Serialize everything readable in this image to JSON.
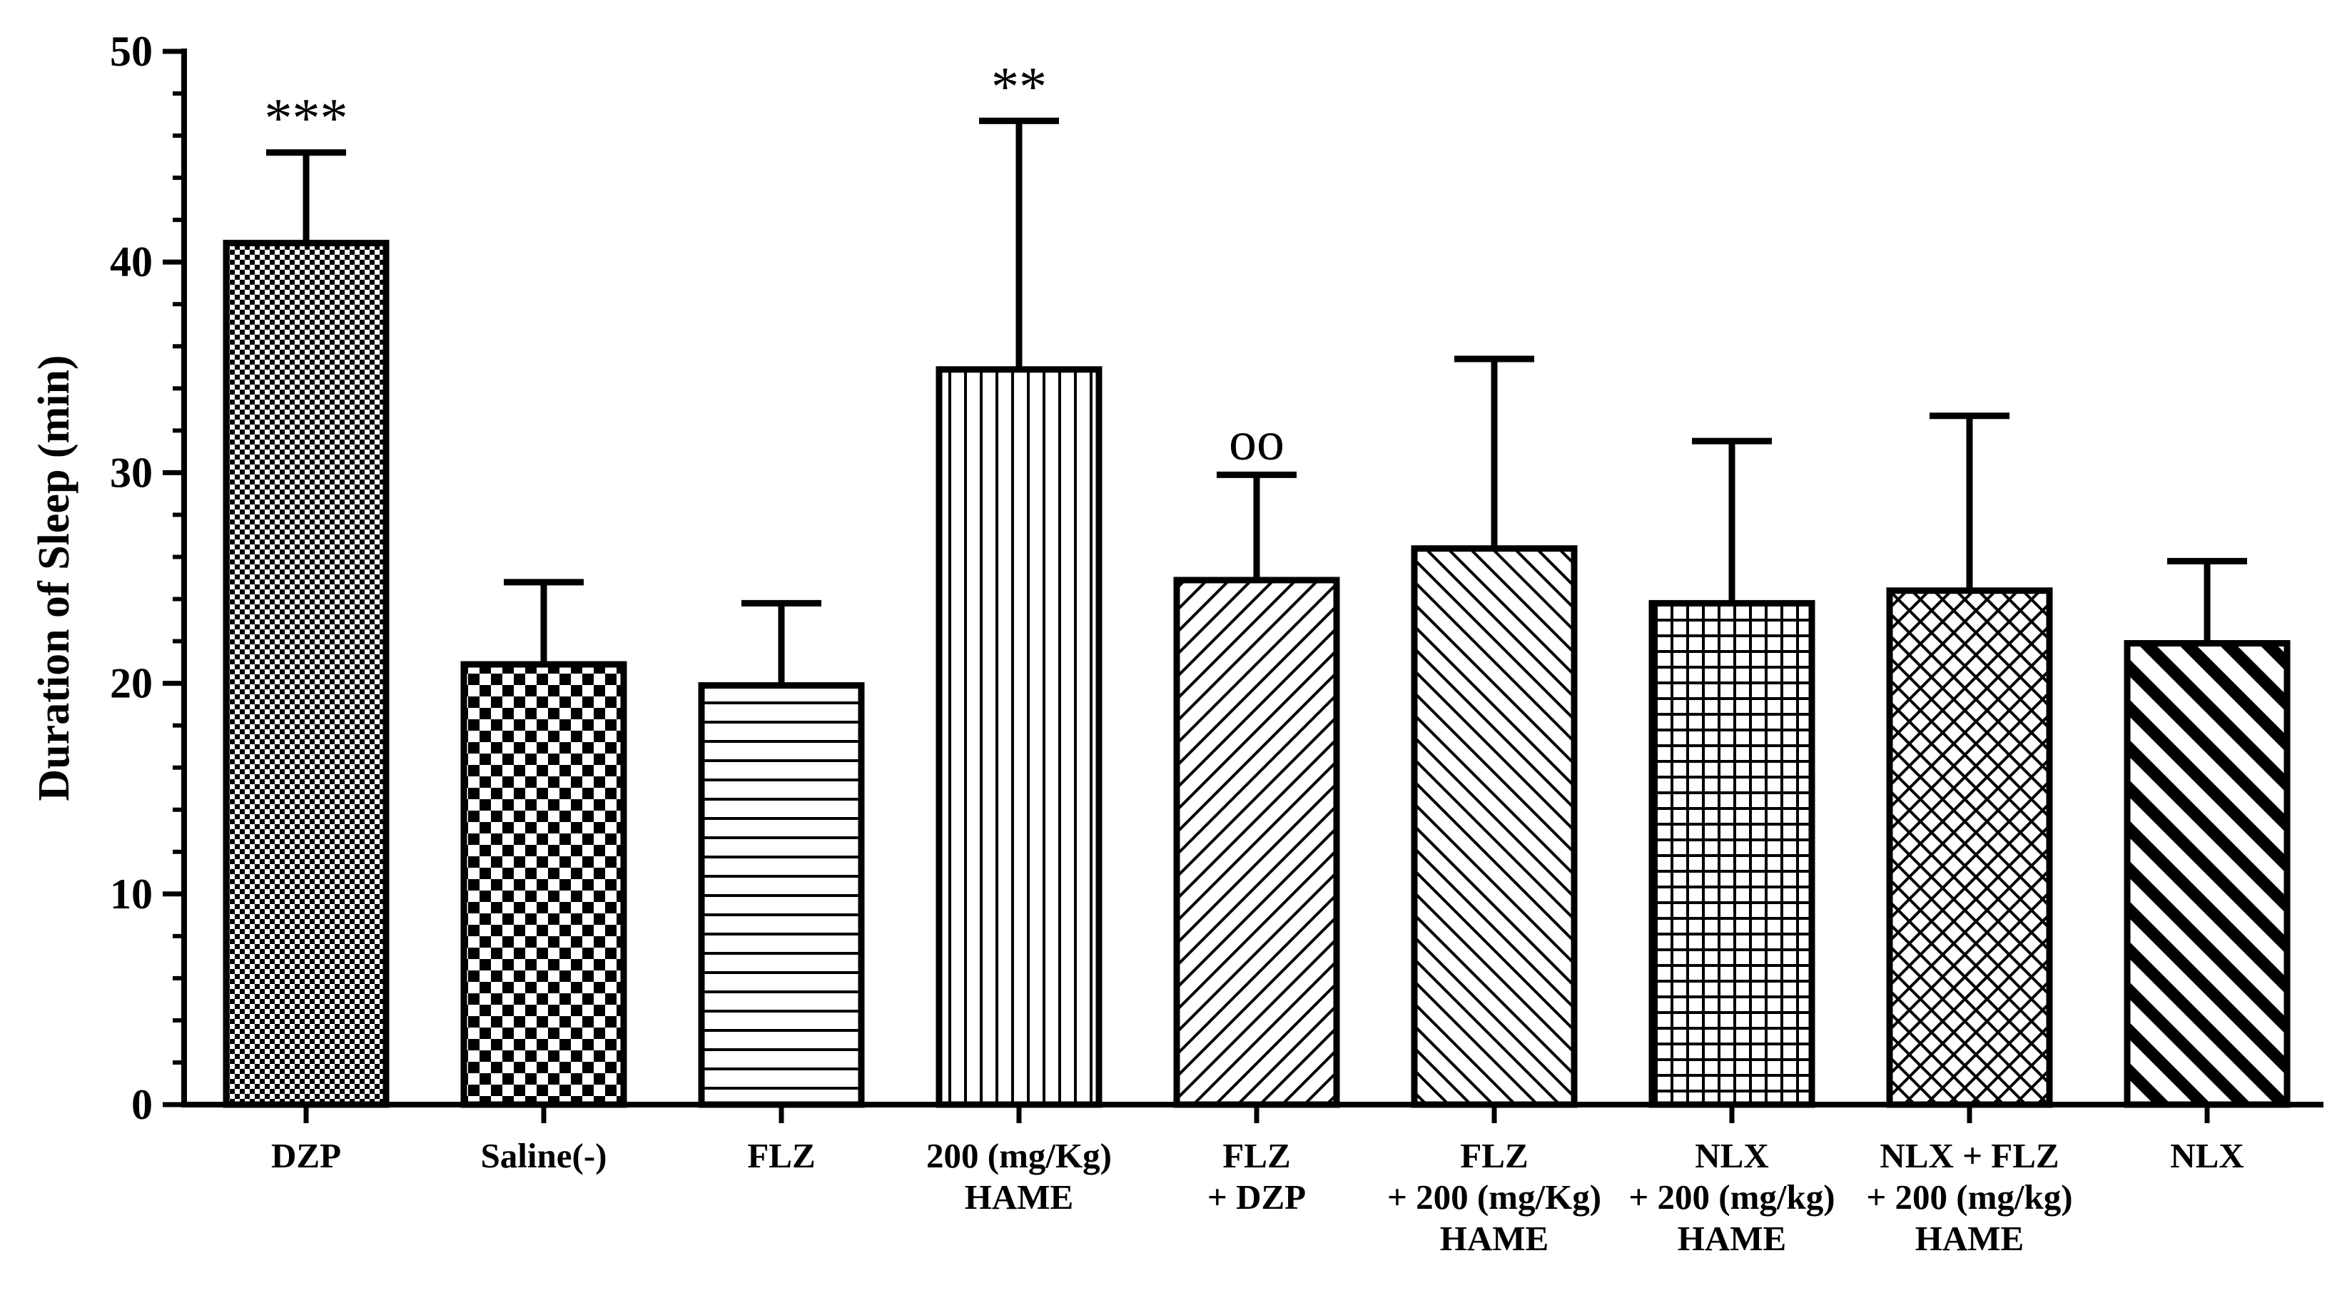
{
  "chart_data": {
    "type": "bar",
    "title": "",
    "xlabel": "",
    "ylabel": "Duration of Sleep (min)",
    "ylim": [
      0,
      50
    ],
    "yticks": [
      0,
      10,
      20,
      30,
      40,
      50
    ],
    "grid": false,
    "legend": "none",
    "categories": [
      [
        "DZP"
      ],
      [
        "Saline(-)"
      ],
      [
        "FLZ"
      ],
      [
        "200 (mg/Kg)",
        "HAME"
      ],
      [
        "FLZ",
        "+ DZP"
      ],
      [
        "FLZ",
        "+ 200 (mg/Kg)",
        "HAME"
      ],
      [
        "NLX",
        "+ 200 (mg/kg)",
        "HAME"
      ],
      [
        "NLX + FLZ",
        "+ 200 (mg/kg)",
        "HAME"
      ],
      [
        "NLX"
      ]
    ],
    "values": [
      40.9,
      20.9,
      19.9,
      34.9,
      24.9,
      26.4,
      23.8,
      24.4,
      21.9
    ],
    "errors": [
      4.3,
      3.9,
      3.9,
      11.8,
      5.0,
      9.0,
      7.7,
      8.3,
      3.9
    ],
    "patterns": [
      "fine-check",
      "checker",
      "hlines",
      "vlines",
      "diag-up",
      "diag-down",
      "grid",
      "crosshatch",
      "bold-diag-down"
    ],
    "annotations": [
      "***",
      "",
      "",
      "**",
      "oo",
      "",
      "",
      "",
      ""
    ]
  }
}
